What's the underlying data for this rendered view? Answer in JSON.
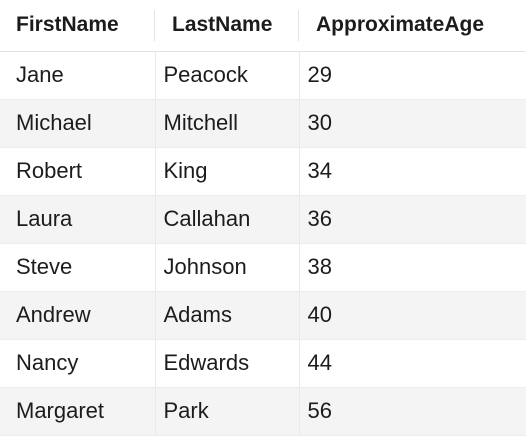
{
  "table": {
    "columns": [
      "FirstName",
      "LastName",
      "ApproximateAge"
    ],
    "rows": [
      [
        "Jane",
        "Peacock",
        "29"
      ],
      [
        "Michael",
        "Mitchell",
        "30"
      ],
      [
        "Robert",
        "King",
        "34"
      ],
      [
        "Laura",
        "Callahan",
        "36"
      ],
      [
        "Steve",
        "Johnson",
        "38"
      ],
      [
        "Andrew",
        "Adams",
        "40"
      ],
      [
        "Nancy",
        "Edwards",
        "44"
      ],
      [
        "Margaret",
        "Park",
        "56"
      ]
    ]
  }
}
